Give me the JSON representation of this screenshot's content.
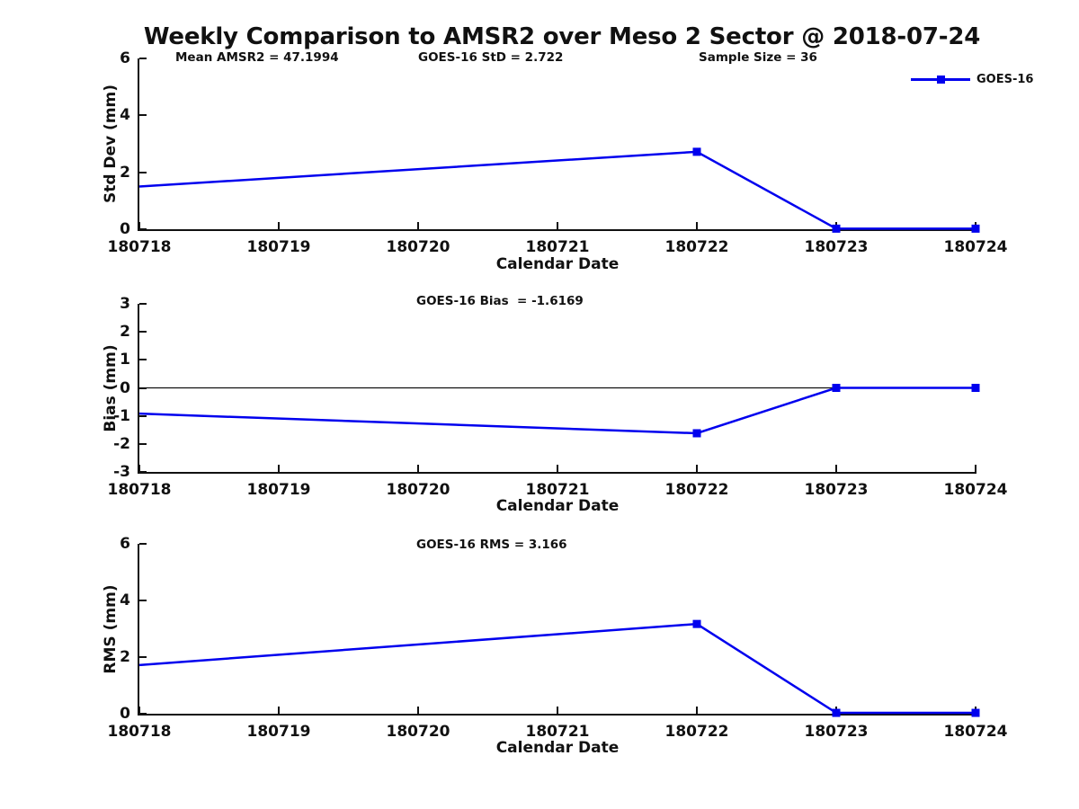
{
  "header": {
    "title": "Weekly Comparison to AMSR2 over Meso 2 Sector @ 2018-07-24"
  },
  "colors": {
    "series_blue": "#0000EE",
    "axis_black": "#111111",
    "background": "#ffffff"
  },
  "chart_data": [
    {
      "type": "line",
      "subplot": "std-dev",
      "ylabel": "Std Dev (mm)",
      "xlabel": "Calendar Date",
      "ylim": [
        0,
        6
      ],
      "yticks": [
        0,
        2,
        4,
        6
      ],
      "xlim": [
        180718,
        180724
      ],
      "xticklabels": [
        "180718",
        "180719",
        "180720",
        "180721",
        "180722",
        "180723",
        "180724"
      ],
      "annotations": [
        "Mean AMSR2 = 47.1994",
        "GOES-16 StD = 2.722",
        "Sample Size = 36"
      ],
      "legend": {
        "label": "GOES-16",
        "position": "upper-right"
      },
      "grid": false,
      "series": [
        {
          "name": "GOES-16",
          "color": "#0000EE",
          "marker": "square",
          "x": [
            180718,
            180722,
            180723,
            180724
          ],
          "y": [
            1.5,
            2.72,
            0.02,
            0.02
          ],
          "marker_indices": [
            1,
            2,
            3
          ]
        }
      ]
    },
    {
      "type": "line",
      "subplot": "bias",
      "ylabel": "Bias (mm)",
      "xlabel": "Calendar Date",
      "ylim": [
        -3,
        3
      ],
      "yticks": [
        -3,
        -2,
        -1,
        0,
        1,
        2,
        3
      ],
      "xlim": [
        180718,
        180724
      ],
      "xticklabels": [
        "180718",
        "180719",
        "180720",
        "180721",
        "180722",
        "180723",
        "180724"
      ],
      "annotations": [
        "GOES-16 Bias  = -1.6169"
      ],
      "zero_line": true,
      "grid": false,
      "series": [
        {
          "name": "GOES-16",
          "color": "#0000EE",
          "marker": "square",
          "x": [
            180718,
            180722,
            180723,
            180724
          ],
          "y": [
            -0.92,
            -1.62,
            0.0,
            0.0
          ],
          "marker_indices": [
            1,
            2,
            3
          ]
        }
      ]
    },
    {
      "type": "line",
      "subplot": "rms",
      "ylabel": "RMS (mm)",
      "xlabel": "Calendar Date",
      "ylim": [
        0,
        6
      ],
      "yticks": [
        0,
        2,
        4,
        6
      ],
      "xlim": [
        180718,
        180724
      ],
      "xticklabels": [
        "180718",
        "180719",
        "180720",
        "180721",
        "180722",
        "180723",
        "180724"
      ],
      "annotations": [
        "GOES-16 RMS = 3.166"
      ],
      "grid": false,
      "series": [
        {
          "name": "GOES-16",
          "color": "#0000EE",
          "marker": "square",
          "x": [
            180718,
            180722,
            180723,
            180724
          ],
          "y": [
            1.72,
            3.17,
            0.03,
            0.03
          ],
          "marker_indices": [
            1,
            2,
            3
          ]
        }
      ]
    }
  ]
}
